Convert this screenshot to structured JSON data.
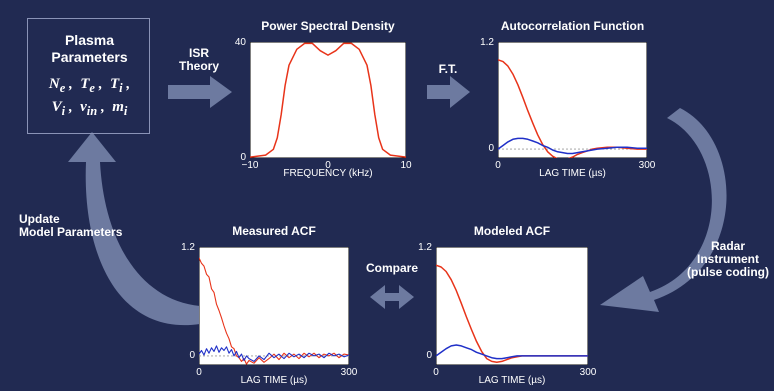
{
  "params_box": {
    "title_line1": "Plasma",
    "title_line2": "Parameters",
    "symbols_line1": "Ne , Te , Ti ,",
    "symbols_line2": "Vi , νin , mi"
  },
  "arrows": {
    "isr_theory": "ISR\nTheory",
    "ft": "F.T.",
    "radar": "Radar\nInstrument\n(pulse coding)",
    "compare": "Compare",
    "update": "Update\nModel Parameters"
  },
  "colors": {
    "background": "#212a52",
    "arrow": "#6d7aa0",
    "red_curve": "#e8341a",
    "blue_curve": "#2030c8"
  },
  "chart_data": [
    {
      "id": "psd",
      "type": "line",
      "title": "Power Spectral Density",
      "xlabel": "FREQUENCY (kHz)",
      "ylabel": "",
      "xlim": [
        -10,
        10
      ],
      "ylim": [
        0,
        40
      ],
      "x_ticks": [
        "−10",
        "0",
        "10"
      ],
      "y_ticks": [
        "40",
        "0"
      ],
      "series": [
        {
          "color": "#e8341a",
          "x": [
            -10,
            -8,
            -7,
            -6.5,
            -6,
            -5.5,
            -5,
            -4,
            -3,
            -2,
            -1,
            0,
            1,
            2,
            3,
            4,
            5,
            5.5,
            6,
            6.5,
            7,
            8,
            10
          ],
          "y": [
            0.3,
            1,
            3,
            7,
            15,
            25,
            32,
            37.5,
            39.5,
            39.5,
            37,
            35.5,
            37,
            39.5,
            39.5,
            37.5,
            32,
            25,
            15,
            7,
            3,
            1,
            0.3
          ]
        }
      ]
    },
    {
      "id": "acf",
      "type": "line",
      "title": "Autocorrelation Function",
      "xlabel": "LAG TIME (µs)",
      "ylabel": "",
      "xlim": [
        0,
        300
      ],
      "ylim": [
        -0.1,
        1.2
      ],
      "x_ticks": [
        "0",
        "300"
      ],
      "y_ticks": [
        "1.2",
        "0"
      ],
      "zero_line": true,
      "series": [
        {
          "color": "#e8341a",
          "x": [
            0,
            10,
            20,
            30,
            40,
            50,
            60,
            70,
            80,
            90,
            100,
            110,
            120,
            130,
            140,
            150,
            160,
            170,
            180,
            190,
            200,
            220,
            240,
            260,
            280,
            300
          ],
          "y": [
            1.0,
            0.98,
            0.93,
            0.84,
            0.72,
            0.58,
            0.43,
            0.29,
            0.16,
            0.05,
            -0.03,
            -0.08,
            -0.11,
            -0.12,
            -0.11,
            -0.09,
            -0.06,
            -0.04,
            -0.02,
            0.0,
            0.01,
            0.02,
            0.02,
            0.01,
            0.0,
            0.0
          ]
        },
        {
          "color": "#2030c8",
          "x": [
            0,
            10,
            20,
            30,
            40,
            50,
            60,
            70,
            80,
            90,
            100,
            110,
            120,
            130,
            140,
            150,
            160,
            170,
            180,
            190,
            200,
            220,
            240,
            260,
            280,
            300
          ],
          "y": [
            0.0,
            0.04,
            0.08,
            0.11,
            0.12,
            0.12,
            0.11,
            0.09,
            0.07,
            0.04,
            0.02,
            -0.01,
            -0.03,
            -0.04,
            -0.05,
            -0.05,
            -0.04,
            -0.03,
            -0.02,
            -0.01,
            0.0,
            0.01,
            0.02,
            0.02,
            0.01,
            0.01
          ]
        }
      ]
    },
    {
      "id": "measured",
      "type": "line",
      "title": "Measured ACF",
      "xlabel": "LAG TIME (µs)",
      "ylabel": "",
      "xlim": [
        0,
        300
      ],
      "ylim": [
        -0.1,
        1.2
      ],
      "x_ticks": [
        "0",
        "300"
      ],
      "y_ticks": [
        "1.2",
        "0"
      ],
      "zero_line": true,
      "series": [
        {
          "color": "#e8341a",
          "x": [
            0,
            5,
            10,
            15,
            20,
            25,
            30,
            35,
            40,
            45,
            50,
            55,
            60,
            65,
            70,
            75,
            80,
            85,
            90,
            95,
            100,
            110,
            120,
            130,
            140,
            150,
            160,
            170,
            180,
            190,
            200,
            210,
            220,
            230,
            240,
            250,
            260,
            270,
            280,
            290,
            300
          ],
          "y": [
            1.08,
            1.02,
            0.99,
            0.9,
            0.87,
            0.74,
            0.7,
            0.57,
            0.5,
            0.42,
            0.33,
            0.25,
            0.19,
            0.1,
            0.08,
            0.0,
            -0.02,
            -0.06,
            -0.03,
            -0.09,
            -0.05,
            -0.08,
            -0.02,
            -0.07,
            -0.03,
            0.02,
            -0.04,
            0.03,
            -0.02,
            0.02,
            -0.03,
            0.03,
            -0.01,
            0.03,
            -0.02,
            0.02,
            0.0,
            0.03,
            -0.02,
            0.02,
            0.01
          ]
        },
        {
          "color": "#2030c8",
          "x": [
            0,
            5,
            10,
            15,
            20,
            25,
            30,
            35,
            40,
            45,
            50,
            55,
            60,
            65,
            70,
            75,
            80,
            85,
            90,
            95,
            100,
            110,
            120,
            130,
            140,
            150,
            160,
            170,
            180,
            190,
            200,
            210,
            220,
            230,
            240,
            250,
            260,
            270,
            280,
            290,
            300
          ],
          "y": [
            0.02,
            0.06,
            0.01,
            0.08,
            0.03,
            0.09,
            0.05,
            0.11,
            0.04,
            0.09,
            0.06,
            0.1,
            0.03,
            0.07,
            0.0,
            0.05,
            -0.02,
            0.02,
            -0.05,
            0.0,
            -0.03,
            -0.06,
            0.0,
            -0.04,
            0.03,
            -0.02,
            0.02,
            -0.03,
            0.03,
            -0.01,
            0.02,
            -0.02,
            0.03,
            0.0,
            0.02,
            -0.02,
            0.03,
            0.0,
            0.02,
            -0.01,
            0.01
          ]
        }
      ]
    },
    {
      "id": "modeled",
      "type": "line",
      "title": "Modeled ACF",
      "xlabel": "LAG TIME (µs)",
      "ylabel": "",
      "xlim": [
        0,
        300
      ],
      "ylim": [
        -0.1,
        1.2
      ],
      "x_ticks": [
        "0",
        "300"
      ],
      "y_ticks": [
        "1.2",
        "0"
      ],
      "zero_line": false,
      "series": [
        {
          "color": "#e8341a",
          "x": [
            0,
            10,
            20,
            30,
            40,
            50,
            60,
            70,
            80,
            90,
            100,
            110,
            120,
            130,
            140,
            150,
            160,
            170,
            180,
            190,
            200,
            220,
            240,
            260,
            280,
            300
          ],
          "y": [
            1.0,
            0.98,
            0.93,
            0.84,
            0.72,
            0.58,
            0.43,
            0.29,
            0.16,
            0.05,
            -0.03,
            -0.06,
            -0.07,
            -0.06,
            -0.04,
            -0.02,
            -0.01,
            0.0,
            0.0,
            0.0,
            0.0,
            0.0,
            0.0,
            0.0,
            0.0,
            0.0
          ]
        },
        {
          "color": "#2030c8",
          "x": [
            0,
            10,
            20,
            30,
            40,
            50,
            60,
            70,
            80,
            90,
            100,
            110,
            120,
            130,
            140,
            150,
            160,
            170,
            180,
            190,
            200,
            220,
            240,
            260,
            280,
            300
          ],
          "y": [
            0.0,
            0.04,
            0.08,
            0.11,
            0.12,
            0.11,
            0.09,
            0.07,
            0.04,
            0.02,
            0.0,
            -0.02,
            -0.03,
            -0.03,
            -0.02,
            -0.01,
            0.0,
            0.0,
            0.0,
            0.0,
            0.0,
            0.0,
            0.0,
            0.0,
            0.0,
            0.0
          ]
        }
      ]
    }
  ]
}
